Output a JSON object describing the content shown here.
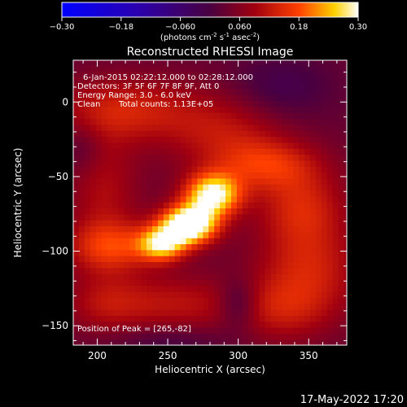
{
  "chart_data": {
    "type": "heatmap",
    "title": "Reconstructed RHESSI Image",
    "xlabel": "Heliocentric X (arcsec)",
    "ylabel": "Heliocentric Y (arcsec)",
    "xlim": [
      183,
      377
    ],
    "ylim": [
      -163,
      28
    ],
    "x_ticks": [
      200,
      250,
      300,
      350
    ],
    "y_ticks": [
      0,
      -50,
      -100,
      -150
    ],
    "colorbar": {
      "ticks": [
        -0.3,
        -0.18,
        -0.06,
        0.06,
        0.18,
        0.3
      ],
      "tick_labels": [
        "-0.30",
        "-0.18",
        "-0.060",
        "0.060",
        "0.18",
        "0.30"
      ],
      "range": [
        -0.3,
        0.3
      ],
      "unit_text": "(photons cm",
      "unit_sup1": "-2",
      "unit_mid": " s",
      "unit_sup2": "-1",
      "unit_mid2": " asec",
      "unit_sup3": "-2",
      "unit_end": ")"
    },
    "annotations": {
      "time_range": "6-Jan-2015 02:22:12.000 to 02:28:12.000",
      "detectors": "Detectors: 3F 5F 6F 7F 8F 9F, Att 0",
      "energy": "Energy Range: 3.0 - 6.0 keV",
      "method": "Clean",
      "counts": "Total counts: 1.13E+05",
      "peak": "Position of Peak = [265,-82]"
    },
    "peak": [
      265,
      -82
    ],
    "sources": [
      {
        "x": 265,
        "y": -82,
        "sx": 14,
        "sy": 9,
        "amp": 0.34
      },
      {
        "x": 282,
        "y": -62,
        "sx": 14,
        "sy": 10,
        "amp": 0.27
      },
      {
        "x": 246,
        "y": -95,
        "sx": 12,
        "sy": 8,
        "amp": 0.22
      },
      {
        "x": 210,
        "y": -97,
        "sx": 22,
        "sy": 12,
        "amp": 0.12
      },
      {
        "x": 320,
        "y": -42,
        "sx": 26,
        "sy": 12,
        "amp": 0.11
      },
      {
        "x": 345,
        "y": -70,
        "sx": 22,
        "sy": 18,
        "amp": 0.1
      },
      {
        "x": 350,
        "y": -112,
        "sx": 26,
        "sy": 22,
        "amp": 0.1
      },
      {
        "x": 220,
        "y": -5,
        "sx": 35,
        "sy": 15,
        "amp": 0.1
      },
      {
        "x": 290,
        "y": -20,
        "sx": 30,
        "sy": 18,
        "amp": 0.08
      },
      {
        "x": 205,
        "y": -60,
        "sx": 18,
        "sy": 30,
        "amp": 0.07
      },
      {
        "x": 255,
        "y": -135,
        "sx": 35,
        "sy": 14,
        "amp": 0.08
      },
      {
        "x": 330,
        "y": -140,
        "sx": 25,
        "sy": 15,
        "amp": 0.07
      },
      {
        "x": 205,
        "y": -135,
        "sx": 20,
        "sy": 14,
        "amp": 0.06
      },
      {
        "x": 300,
        "y": -135,
        "sx": 10,
        "sy": 12,
        "amp": -0.08
      },
      {
        "x": 330,
        "y": 10,
        "sx": 25,
        "sy": 15,
        "amp": -0.05
      },
      {
        "x": 250,
        "y": -160,
        "sx": 30,
        "sy": 8,
        "amp": -0.04
      },
      {
        "x": 190,
        "y": -30,
        "sx": 10,
        "sy": 12,
        "amp": -0.04
      }
    ],
    "background": 0.03
  },
  "footer": {
    "timestamp": "17-May-2022 17:20"
  }
}
